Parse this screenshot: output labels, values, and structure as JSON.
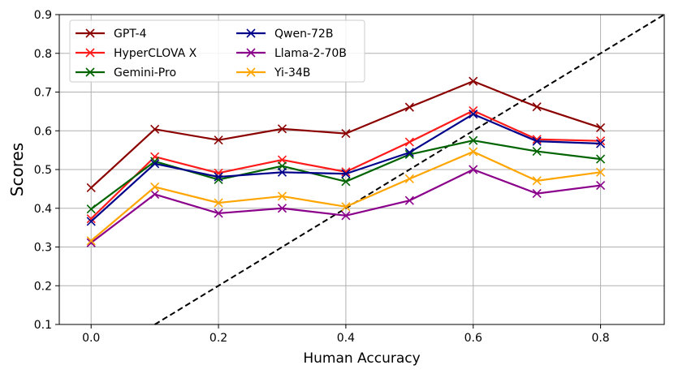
{
  "chart_data": {
    "type": "line",
    "title": "",
    "xlabel": "Human Accuracy",
    "ylabel": "Scores",
    "xlim": [
      -0.05,
      0.9
    ],
    "ylim": [
      0.1,
      0.9
    ],
    "x_ticks": [
      "0.0",
      "0.2",
      "0.4",
      "0.6",
      "0.8"
    ],
    "y_ticks": [
      "0.1",
      "0.2",
      "0.3",
      "0.4",
      "0.5",
      "0.6",
      "0.7",
      "0.8",
      "0.9"
    ],
    "grid": true,
    "legend_position": "top-left",
    "x": [
      0.0,
      0.1,
      0.2,
      0.3,
      0.4,
      0.5,
      0.6,
      0.7,
      0.8
    ],
    "series": [
      {
        "name": "GPT-4",
        "color": "#8b0000",
        "values": [
          0.453,
          0.604,
          0.576,
          0.605,
          0.593,
          0.661,
          0.728,
          0.662,
          0.608
        ]
      },
      {
        "name": "HyperCLOVA X",
        "color": "#ff1a1a",
        "values": [
          0.373,
          0.533,
          0.491,
          0.525,
          0.494,
          0.571,
          0.652,
          0.578,
          0.574
        ]
      },
      {
        "name": "Gemini-Pro",
        "color": "#006400",
        "values": [
          0.398,
          0.521,
          0.474,
          0.509,
          0.469,
          0.539,
          0.575,
          0.547,
          0.527
        ]
      },
      {
        "name": "Qwen-72B",
        "color": "#00008b",
        "values": [
          0.366,
          0.515,
          0.481,
          0.493,
          0.489,
          0.544,
          0.643,
          0.573,
          0.567
        ]
      },
      {
        "name": "Llama-2-70B",
        "color": "#8b008b",
        "values": [
          0.311,
          0.436,
          0.387,
          0.4,
          0.381,
          0.42,
          0.5,
          0.438,
          0.459
        ]
      },
      {
        "name": "Yi-34B",
        "color": "#ffa500",
        "values": [
          0.316,
          0.455,
          0.414,
          0.431,
          0.404,
          0.476,
          0.546,
          0.471,
          0.493
        ]
      }
    ],
    "reference_line": {
      "type": "y = x",
      "style": "dashed",
      "color": "#000000"
    }
  }
}
